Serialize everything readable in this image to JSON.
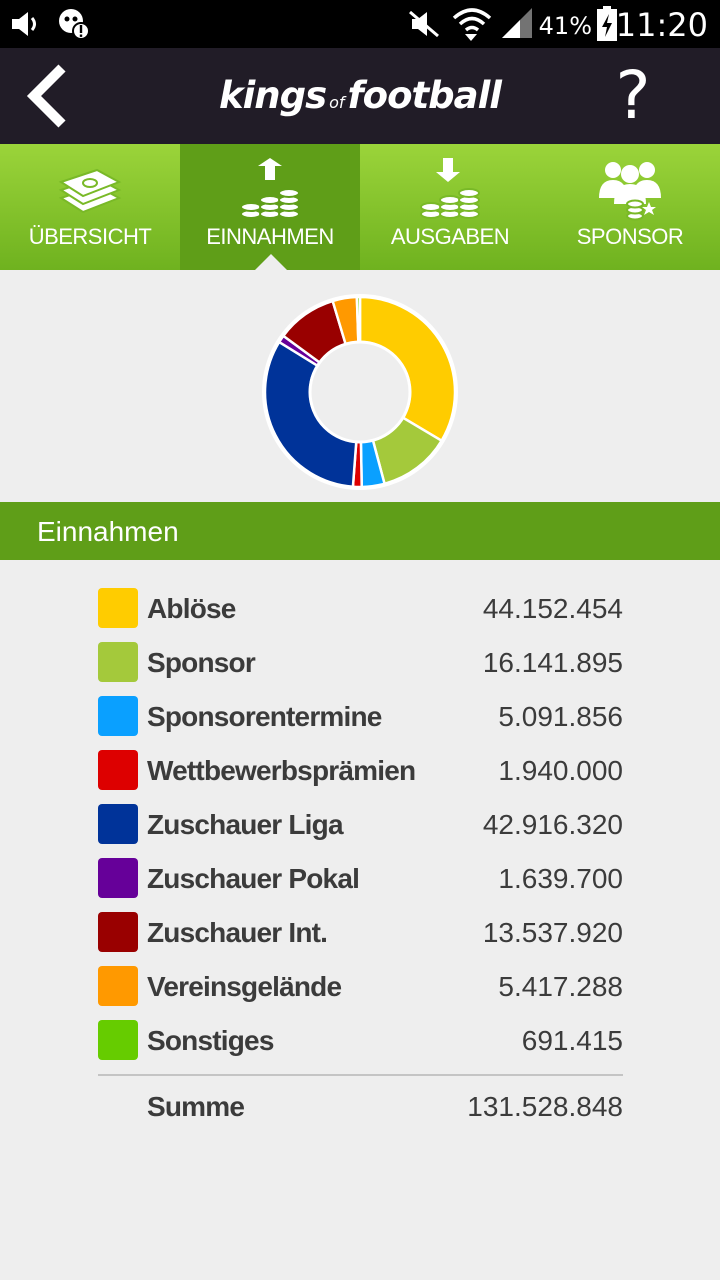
{
  "status_bar": {
    "battery": "41%",
    "time": "11:20"
  },
  "header": {
    "logo_left": "kings",
    "logo_of": "of",
    "logo_right": "football",
    "help_label": "?"
  },
  "tabs": [
    {
      "label": "ÜBERSICHT",
      "icon": "money-stack-icon",
      "active": false
    },
    {
      "label": "EINNAHMEN",
      "icon": "coins-up-icon",
      "active": true
    },
    {
      "label": "AUSGABEN",
      "icon": "coins-down-icon",
      "active": false
    },
    {
      "label": "SPONSOR",
      "icon": "sponsor-people-icon",
      "active": false
    }
  ],
  "section": {
    "title": "Einnahmen"
  },
  "chart_data": {
    "type": "pie",
    "variant": "donut",
    "categories": [
      "Ablöse",
      "Sponsor",
      "Sponsorentermine",
      "Wettbewerbsprämien",
      "Zuschauer Liga",
      "Zuschauer Pokal",
      "Zuschauer Int.",
      "Vereinsgelände",
      "Sonstiges"
    ],
    "values": [
      44152454,
      16141895,
      5091856,
      1940000,
      42916320,
      1639700,
      13537920,
      5417288,
      691415
    ],
    "colors": [
      "#ffcc00",
      "#a4c93b",
      "#0aa0ff",
      "#dd0000",
      "#003399",
      "#660099",
      "#990000",
      "#ff9900",
      "#66cc00"
    ]
  },
  "items": [
    {
      "label": "Ablöse",
      "value": "44.152.454",
      "color": "#ffcc00"
    },
    {
      "label": "Sponsor",
      "value": "16.141.895",
      "color": "#a4c93b"
    },
    {
      "label": "Sponsorentermine",
      "value": "5.091.856",
      "color": "#0aa0ff"
    },
    {
      "label": "Wettbewerbsprämien",
      "value": "1.940.000",
      "color": "#dd0000"
    },
    {
      "label": "Zuschauer Liga",
      "value": "42.916.320",
      "color": "#003399"
    },
    {
      "label": "Zuschauer Pokal",
      "value": "1.639.700",
      "color": "#660099"
    },
    {
      "label": "Zuschauer Int.",
      "value": "13.537.920",
      "color": "#990000"
    },
    {
      "label": "Vereinsgelände",
      "value": "5.417.288",
      "color": "#ff9900"
    },
    {
      "label": "Sonstiges",
      "value": "691.415",
      "color": "#66cc00"
    }
  ],
  "total": {
    "label": "Summe",
    "value": "131.528.848"
  }
}
